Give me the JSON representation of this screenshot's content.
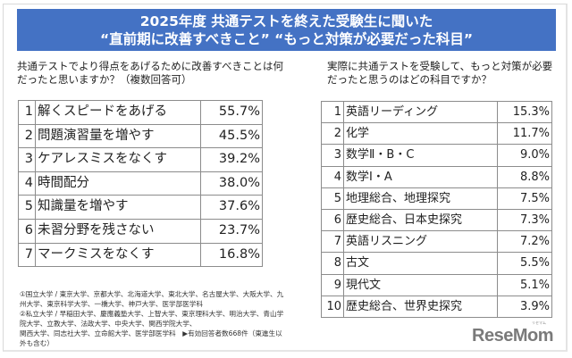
{
  "banner": {
    "line1": "2025年度 共通テストを終えた受験生に聞いた",
    "line2": "“直前期に改善すべきこと” “もっと対策が必要だった科目”",
    "color": "#4472c4"
  },
  "left": {
    "question": "共通テストでより得点をあげるために改善すべきことは何だったと思いますか？（複数回答可）",
    "rows": [
      {
        "rank": "1",
        "label": "解くスピードをあげる",
        "pct": "55.7%"
      },
      {
        "rank": "2",
        "label": "問題演習量を増やす",
        "pct": "45.5%"
      },
      {
        "rank": "3",
        "label": "ケアレスミスをなくす",
        "pct": "39.2%"
      },
      {
        "rank": "4",
        "label": "時間配分",
        "pct": "38.0%"
      },
      {
        "rank": "5",
        "label": "知識量を増やす",
        "pct": "37.6%"
      },
      {
        "rank": "6",
        "label": "未習分野を残さない",
        "pct": "23.7%"
      },
      {
        "rank": "7",
        "label": "マークミスをなくす",
        "pct": "16.8%"
      }
    ]
  },
  "right": {
    "question": "実際に共通テストを受験して、もっと対策が必要だったと思うのはどの科目ですか？",
    "rows": [
      {
        "rank": "1",
        "label": "英語リーディング",
        "pct": "15.3%"
      },
      {
        "rank": "2",
        "label": "化学",
        "pct": "11.7%"
      },
      {
        "rank": "3",
        "label": "数学Ⅱ・B・C",
        "pct": "9.0%"
      },
      {
        "rank": "4",
        "label": "数学Ⅰ・A",
        "pct": "8.8%"
      },
      {
        "rank": "5",
        "label": "地理総合、地理探究",
        "pct": "7.5%"
      },
      {
        "rank": "6",
        "label": "歴史総合、日本史探究",
        "pct": "7.3%"
      },
      {
        "rank": "7",
        "label": "英語リスニング",
        "pct": "7.2%"
      },
      {
        "rank": "8",
        "label": "古文",
        "pct": "5.5%"
      },
      {
        "rank": "9",
        "label": "現代文",
        "pct": "5.1%"
      },
      {
        "rank": "10",
        "label": "歴史総合、世界史探究",
        "pct": "3.9%"
      }
    ]
  },
  "notes": {
    "line1": "①国立大学 / 東京大学、京都大学、北海道大学、東北大学、名古屋大学、大阪大学、九州大学、東京科学大学、一橋大学、神戸大学、医学部医学科",
    "line2": "②私立大学 / 早稲田大学、慶應義塾大学、上智大学、東京理科大学、明治大学、青山学院大学、立教大学、法政大学、中央大学、関西学院大学、",
    "line3": "関西大学、同志社大学、立命館大学、医学部医学科　▶有効回答者数668件（東進生以外も含む）"
  },
  "logo": {
    "text": "ReseMom",
    "kana": "リセマム"
  }
}
